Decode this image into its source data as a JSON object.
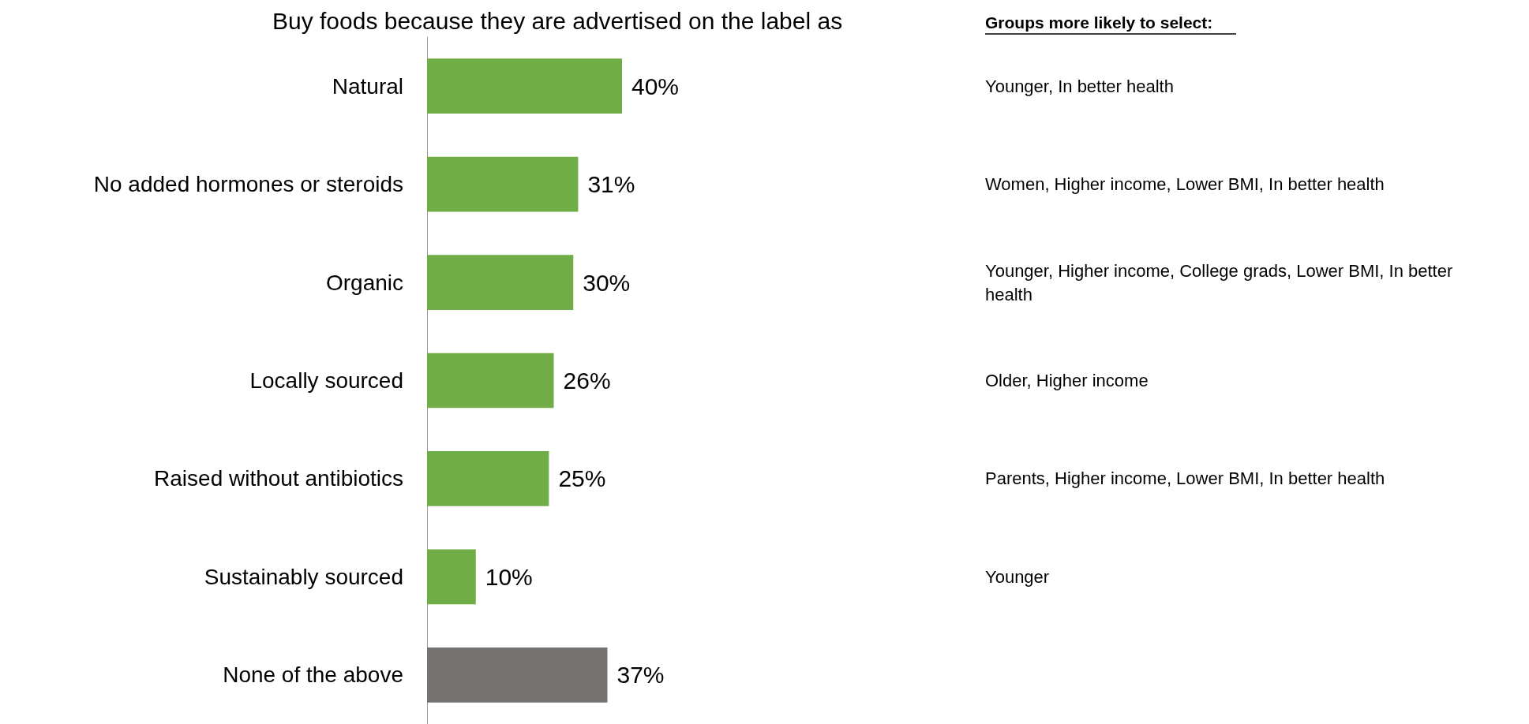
{
  "chart_data": {
    "type": "bar",
    "orientation": "horizontal",
    "title": "Buy foods because they are advertised on the label as",
    "categories": [
      "Natural",
      "No added hormones or steroids",
      "Organic",
      "Locally sourced",
      "Raised without antibiotics",
      "Sustainably sourced",
      "None of the above"
    ],
    "values": [
      40,
      31,
      30,
      26,
      25,
      10,
      37
    ],
    "value_labels": [
      "40%",
      "31%",
      "30%",
      "26%",
      "25%",
      "10%",
      "37%"
    ],
    "colors": [
      "#70ad47",
      "#70ad47",
      "#70ad47",
      "#70ad47",
      "#70ad47",
      "#70ad47",
      "#767171"
    ],
    "annotations": [
      "Groups more likely to select:",
      "Younger, In better health",
      "Women, Higher income, Lower BMI, In better health",
      "Younger, Higher income, College grads, Lower BMI, In better health",
      "Older, Higher income",
      "Parents, Higher income, Lower BMI, In better health",
      "Younger"
    ]
  }
}
